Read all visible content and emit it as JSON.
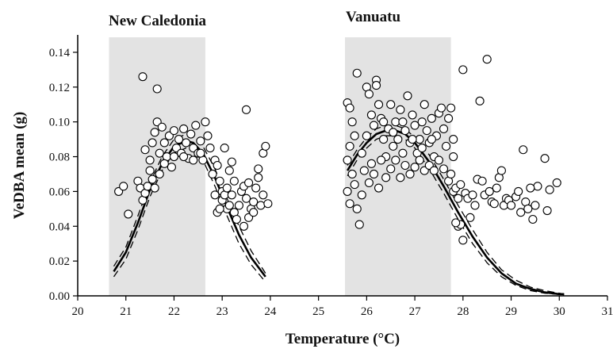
{
  "chart_data": {
    "type": "scatter",
    "xlabel": "Temperature (°C)",
    "ylabel": "VeDBA mean (g)",
    "xlim": [
      20,
      31
    ],
    "ylim": [
      0,
      0.15
    ],
    "x_ticks": [
      "20",
      "21",
      "22",
      "23",
      "24",
      "25",
      "26",
      "27",
      "28",
      "29",
      "30",
      "31"
    ],
    "y_ticks": [
      "0.00",
      "0.02",
      "0.04",
      "0.06",
      "0.08",
      "0.10",
      "0.12",
      "0.14"
    ],
    "grid": false,
    "colors": {
      "shade": "#e3e3e3",
      "marker_face": "#ffffff",
      "marker_edge": "#000000",
      "line": "#000000"
    },
    "panels": [
      {
        "label": "New Caledonia",
        "shaded_range": [
          20.65,
          22.65
        ],
        "fit": {
          "x": [
            20.75,
            21.0,
            21.25,
            21.5,
            21.75,
            22.0,
            22.25,
            22.4,
            22.6,
            22.85,
            23.1,
            23.35,
            23.6,
            23.9
          ],
          "mean": [
            0.014,
            0.025,
            0.042,
            0.061,
            0.076,
            0.086,
            0.089,
            0.088,
            0.082,
            0.068,
            0.051,
            0.035,
            0.022,
            0.011
          ],
          "upper": [
            0.017,
            0.028,
            0.046,
            0.065,
            0.08,
            0.09,
            0.093,
            0.092,
            0.086,
            0.073,
            0.056,
            0.04,
            0.026,
            0.013
          ],
          "lower": [
            0.011,
            0.021,
            0.038,
            0.057,
            0.072,
            0.082,
            0.085,
            0.084,
            0.078,
            0.063,
            0.046,
            0.03,
            0.018,
            0.008
          ]
        },
        "points": [
          [
            20.85,
            0.06
          ],
          [
            20.95,
            0.063
          ],
          [
            21.05,
            0.047
          ],
          [
            21.25,
            0.066
          ],
          [
            21.3,
            0.062
          ],
          [
            21.35,
            0.055
          ],
          [
            21.4,
            0.059
          ],
          [
            21.45,
            0.063
          ],
          [
            21.35,
            0.126
          ],
          [
            21.65,
            0.119
          ],
          [
            21.4,
            0.084
          ],
          [
            21.5,
            0.078
          ],
          [
            21.55,
            0.088
          ],
          [
            21.6,
            0.094
          ],
          [
            21.65,
            0.1
          ],
          [
            21.7,
            0.082
          ],
          [
            21.75,
            0.097
          ],
          [
            21.8,
            0.088
          ],
          [
            21.85,
            0.08
          ],
          [
            21.9,
            0.092
          ],
          [
            21.95,
            0.074
          ],
          [
            22.0,
            0.095
          ],
          [
            22.05,
            0.085
          ],
          [
            22.1,
            0.09
          ],
          [
            22.15,
            0.082
          ],
          [
            22.2,
            0.096
          ],
          [
            22.25,
            0.088
          ],
          [
            22.3,
            0.079
          ],
          [
            22.35,
            0.093
          ],
          [
            22.4,
            0.085
          ],
          [
            22.45,
            0.098
          ],
          [
            22.5,
            0.082
          ],
          [
            22.55,
            0.089
          ],
          [
            22.6,
            0.078
          ],
          [
            22.65,
            0.1
          ],
          [
            21.5,
            0.072
          ],
          [
            21.55,
            0.067
          ],
          [
            21.6,
            0.062
          ],
          [
            21.7,
            0.07
          ],
          [
            21.8,
            0.076
          ],
          [
            22.0,
            0.08
          ],
          [
            22.2,
            0.08
          ],
          [
            22.4,
            0.078
          ],
          [
            22.55,
            0.082
          ],
          [
            22.7,
            0.092
          ],
          [
            22.75,
            0.085
          ],
          [
            22.8,
            0.07
          ],
          [
            22.85,
            0.078
          ],
          [
            22.9,
            0.075
          ],
          [
            22.95,
            0.066
          ],
          [
            23.0,
            0.06
          ],
          [
            23.05,
            0.085
          ],
          [
            23.1,
            0.05
          ],
          [
            23.15,
            0.072
          ],
          [
            23.2,
            0.077
          ],
          [
            22.85,
            0.058
          ],
          [
            22.9,
            0.048
          ],
          [
            22.95,
            0.05
          ],
          [
            23.0,
            0.055
          ],
          [
            23.05,
            0.058
          ],
          [
            23.1,
            0.062
          ],
          [
            23.15,
            0.052
          ],
          [
            23.2,
            0.058
          ],
          [
            23.25,
            0.048
          ],
          [
            23.3,
            0.044
          ],
          [
            23.35,
            0.052
          ],
          [
            23.4,
            0.06
          ],
          [
            23.45,
            0.063
          ],
          [
            23.5,
            0.056
          ],
          [
            23.5,
            0.107
          ],
          [
            23.55,
            0.045
          ],
          [
            23.6,
            0.05
          ],
          [
            23.65,
            0.054
          ],
          [
            23.7,
            0.062
          ],
          [
            23.75,
            0.068
          ],
          [
            23.75,
            0.073
          ],
          [
            23.8,
            0.052
          ],
          [
            23.85,
            0.058
          ],
          [
            23.85,
            0.082
          ],
          [
            23.9,
            0.086
          ],
          [
            23.95,
            0.053
          ],
          [
            23.45,
            0.04
          ],
          [
            23.65,
            0.048
          ],
          [
            23.25,
            0.066
          ],
          [
            23.55,
            0.065
          ]
        ]
      },
      {
        "label": "Vanuatu",
        "shaded_range": [
          25.55,
          27.75
        ],
        "fit": {
          "x": [
            25.6,
            25.8,
            26.0,
            26.2,
            26.4,
            26.6,
            26.8,
            27.0,
            27.3,
            27.6,
            27.9,
            28.2,
            28.5,
            28.8,
            29.1,
            29.4,
            29.7,
            30.0,
            30.1
          ],
          "mean": [
            0.072,
            0.081,
            0.088,
            0.093,
            0.095,
            0.095,
            0.093,
            0.088,
            0.077,
            0.063,
            0.048,
            0.034,
            0.022,
            0.013,
            0.007,
            0.004,
            0.002,
            0.001,
            0.001
          ],
          "upper": [
            0.075,
            0.084,
            0.091,
            0.096,
            0.098,
            0.098,
            0.096,
            0.091,
            0.081,
            0.067,
            0.052,
            0.038,
            0.025,
            0.015,
            0.009,
            0.005,
            0.003,
            0.0015,
            0.001
          ],
          "lower": [
            0.069,
            0.078,
            0.085,
            0.09,
            0.092,
            0.092,
            0.09,
            0.085,
            0.073,
            0.059,
            0.044,
            0.03,
            0.019,
            0.011,
            0.006,
            0.003,
            0.0015,
            0.0008,
            0.0005
          ]
        },
        "points": [
          [
            25.6,
            0.111
          ],
          [
            25.65,
            0.108
          ],
          [
            25.7,
            0.1
          ],
          [
            25.75,
            0.092
          ],
          [
            25.6,
            0.078
          ],
          [
            25.65,
            0.086
          ],
          [
            25.7,
            0.07
          ],
          [
            25.6,
            0.06
          ],
          [
            25.65,
            0.053
          ],
          [
            25.75,
            0.064
          ],
          [
            25.8,
            0.05
          ],
          [
            25.85,
            0.041
          ],
          [
            25.9,
            0.058
          ],
          [
            25.95,
            0.072
          ],
          [
            25.8,
            0.128
          ],
          [
            26.0,
            0.12
          ],
          [
            26.05,
            0.116
          ],
          [
            26.1,
            0.104
          ],
          [
            26.15,
            0.098
          ],
          [
            26.2,
            0.124
          ],
          [
            26.2,
            0.121
          ],
          [
            26.25,
            0.11
          ],
          [
            26.3,
            0.102
          ],
          [
            26.35,
            0.09
          ],
          [
            26.4,
            0.08
          ],
          [
            26.45,
            0.096
          ],
          [
            26.5,
            0.11
          ],
          [
            26.55,
            0.086
          ],
          [
            26.6,
            0.1
          ],
          [
            26.65,
            0.09
          ],
          [
            26.7,
            0.107
          ],
          [
            26.75,
            0.082
          ],
          [
            26.8,
            0.095
          ],
          [
            26.85,
            0.115
          ],
          [
            26.9,
            0.088
          ],
          [
            26.95,
            0.104
          ],
          [
            27.0,
            0.098
          ],
          [
            27.05,
            0.082
          ],
          [
            27.1,
            0.09
          ],
          [
            27.15,
            0.1
          ],
          [
            27.2,
            0.11
          ],
          [
            27.25,
            0.095
          ],
          [
            27.3,
            0.088
          ],
          [
            27.35,
            0.102
          ],
          [
            27.4,
            0.08
          ],
          [
            27.45,
            0.092
          ],
          [
            27.5,
            0.105
          ],
          [
            27.55,
            0.108
          ],
          [
            27.6,
            0.096
          ],
          [
            27.65,
            0.086
          ],
          [
            27.7,
            0.102
          ],
          [
            27.75,
            0.108
          ],
          [
            27.8,
            0.09
          ],
          [
            25.9,
            0.082
          ],
          [
            26.0,
            0.092
          ],
          [
            26.05,
            0.065
          ],
          [
            26.1,
            0.076
          ],
          [
            26.15,
            0.07
          ],
          [
            26.25,
            0.062
          ],
          [
            26.3,
            0.078
          ],
          [
            26.4,
            0.068
          ],
          [
            26.5,
            0.073
          ],
          [
            26.6,
            0.078
          ],
          [
            26.7,
            0.068
          ],
          [
            26.8,
            0.075
          ],
          [
            26.9,
            0.07
          ],
          [
            27.0,
            0.074
          ],
          [
            27.1,
            0.078
          ],
          [
            27.2,
            0.072
          ],
          [
            27.3,
            0.075
          ],
          [
            27.4,
            0.072
          ],
          [
            27.5,
            0.078
          ],
          [
            27.6,
            0.073
          ],
          [
            27.7,
            0.066
          ],
          [
            27.75,
            0.07
          ],
          [
            27.8,
            0.06
          ],
          [
            27.85,
            0.062
          ],
          [
            27.9,
            0.056
          ],
          [
            27.95,
            0.064
          ],
          [
            27.8,
            0.08
          ],
          [
            27.9,
            0.04
          ],
          [
            27.95,
            0.041
          ],
          [
            28.0,
            0.032
          ],
          [
            28.05,
            0.059
          ],
          [
            28.0,
            0.13
          ],
          [
            28.1,
            0.056
          ],
          [
            28.2,
            0.058
          ],
          [
            28.25,
            0.052
          ],
          [
            28.3,
            0.067
          ],
          [
            28.35,
            0.112
          ],
          [
            28.4,
            0.066
          ],
          [
            28.45,
            0.058
          ],
          [
            28.5,
            0.136
          ],
          [
            28.55,
            0.06
          ],
          [
            28.6,
            0.054
          ],
          [
            28.65,
            0.053
          ],
          [
            28.7,
            0.062
          ],
          [
            28.75,
            0.068
          ],
          [
            28.8,
            0.072
          ],
          [
            28.85,
            0.052
          ],
          [
            28.9,
            0.056
          ],
          [
            28.95,
            0.055
          ],
          [
            29.0,
            0.052
          ],
          [
            29.1,
            0.057
          ],
          [
            29.15,
            0.06
          ],
          [
            29.2,
            0.048
          ],
          [
            29.25,
            0.084
          ],
          [
            29.3,
            0.054
          ],
          [
            29.35,
            0.05
          ],
          [
            29.45,
            0.044
          ],
          [
            29.5,
            0.052
          ],
          [
            29.55,
            0.063
          ],
          [
            29.7,
            0.079
          ],
          [
            29.75,
            0.049
          ],
          [
            29.8,
            0.061
          ],
          [
            29.95,
            0.065
          ],
          [
            29.4,
            0.062
          ],
          [
            28.15,
            0.045
          ],
          [
            27.85,
            0.042
          ],
          [
            26.35,
            0.1
          ],
          [
            26.55,
            0.094
          ],
          [
            26.75,
            0.1
          ],
          [
            26.95,
            0.09
          ],
          [
            27.15,
            0.085
          ],
          [
            27.35,
            0.09
          ]
        ]
      }
    ]
  }
}
